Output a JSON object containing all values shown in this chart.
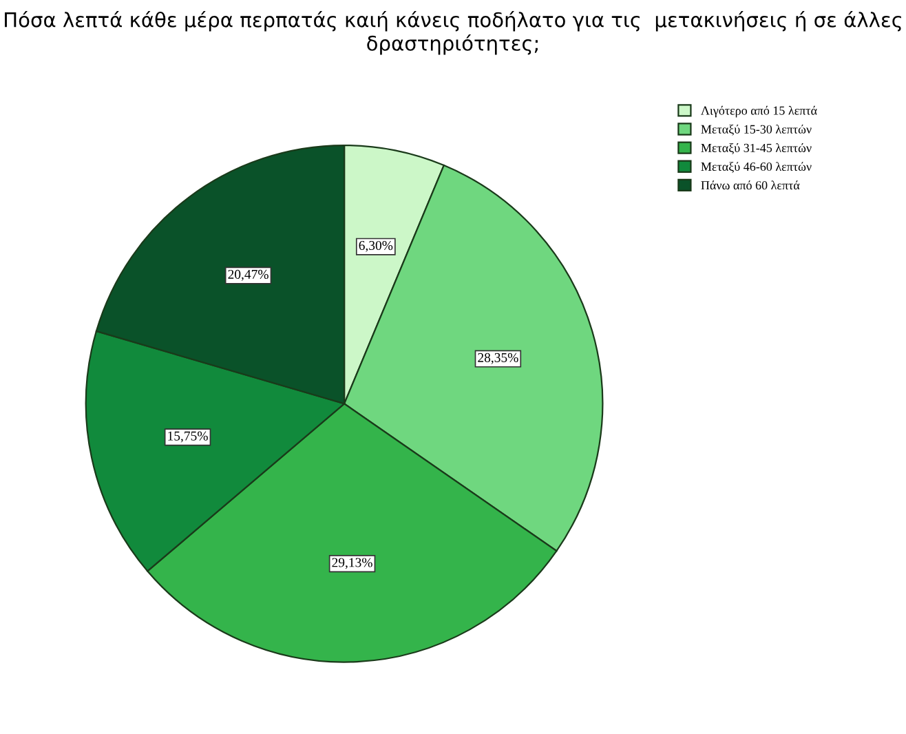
{
  "chart_data": {
    "type": "pie",
    "title": "Πόσα λεπτά κάθε μέρα περπατάς καιή κάνεις ποδήλατο για τις  μετακινήσεις ή σε άλλες δραστηριότητες;",
    "categories": [
      "Λιγότερο από 15 λεπτά",
      "Μεταξύ 15-30 λεπτών",
      "Μεταξύ 31-45 λεπτών",
      "Μεταξύ 46-60 λεπτών",
      "Πάνω από 60 λεπτά"
    ],
    "values": [
      6.3,
      28.35,
      29.13,
      15.75,
      20.47
    ],
    "value_labels": [
      "6,30%",
      "28,35%",
      "29,13%",
      "15,75%",
      "20,47%"
    ],
    "colors": [
      "#ccf7c8",
      "#6fd77f",
      "#34b44b",
      "#118a3c",
      "#0a5229"
    ],
    "legend": "top right"
  }
}
